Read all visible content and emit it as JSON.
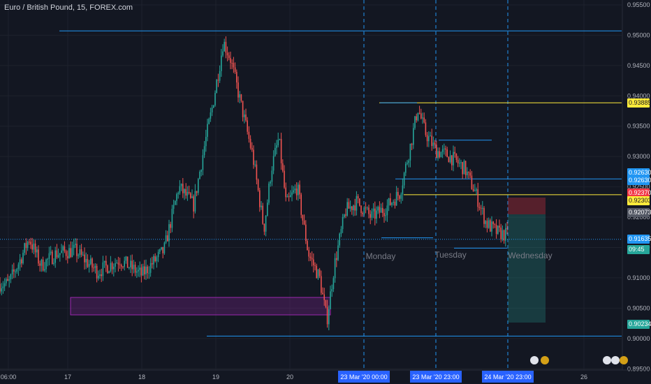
{
  "header": {
    "title": "Euro / British Pound, 15, FOREX.com"
  },
  "chart_data": {
    "type": "candlestick",
    "title": "Euro / British Pound, 15, FOREX.com",
    "ylim": [
      0.8948,
      0.9558
    ],
    "y_ticks": [
      "0.95500",
      "0.95000",
      "0.94500",
      "0.94000",
      "0.93500",
      "0.93000",
      "0.92500",
      "0.92000",
      "0.91500",
      "0.91000",
      "0.90500",
      "0.90000",
      "0.89500"
    ],
    "x_ticks": [
      {
        "label": "06:00",
        "t": 0.0
      },
      {
        "label": "17",
        "t": 1.0
      },
      {
        "label": "18",
        "t": 2.0
      },
      {
        "label": "19",
        "t": 3.0
      },
      {
        "label": "20",
        "t": 4.0
      },
      {
        "label": "26",
        "t": 8.0
      }
    ],
    "x_highlight_labels": [
      {
        "label": "23 Mar '20   00:00",
        "t": 5.0
      },
      {
        "label": "23 Mar '20   23:00",
        "t": 6.0
      },
      {
        "label": "24 Mar '20   23:00",
        "t": 7.0
      }
    ],
    "session_labels": [
      "Monday",
      "Tuesday",
      "Wednesday"
    ],
    "price_levels": [
      {
        "price": 0.9507,
        "color": "#2196f3"
      },
      {
        "price": 0.93885,
        "color": "#ffeb3b"
      },
      {
        "price": 0.9263,
        "color": "#2196f3"
      },
      {
        "price": 0.9237,
        "color": "#ffeb3b"
      },
      {
        "price": 0.9004,
        "color": "#2196f3"
      }
    ],
    "badges": [
      {
        "label": "0.93885",
        "price": 0.93885,
        "bg": "#ffeb3b",
        "fg": "#131722"
      },
      {
        "label": "0.92630",
        "price": 0.9273,
        "bg": "#2196f3",
        "fg": "#ffffff"
      },
      {
        "label": "0.92630",
        "price": 0.926,
        "bg": "#2196f3",
        "fg": "#ffffff"
      },
      {
        "label": "0.92370",
        "price": 0.924,
        "bg": "#f23645",
        "fg": "#ffffff"
      },
      {
        "label": "0.92303",
        "price": 0.9227,
        "bg": "#ffeb3b",
        "fg": "#131722"
      },
      {
        "label": "0.92073",
        "price": 0.92073,
        "bg": "#555a66",
        "fg": "#ffffff"
      },
      {
        "label": "0.91635",
        "price": 0.91635,
        "bg": "#2196f3",
        "fg": "#ffffff"
      },
      {
        "label": "09:45",
        "price": 0.9146,
        "bg": "#26a69a",
        "fg": "#ffffff"
      },
      {
        "label": "0.90234",
        "price": 0.90234,
        "bg": "#26a69a",
        "fg": "#ffffff"
      }
    ],
    "price_path": [
      [
        0.0,
        0.909
      ],
      [
        0.2,
        0.913
      ],
      [
        0.35,
        0.9165
      ],
      [
        0.55,
        0.912
      ],
      [
        0.8,
        0.914
      ],
      [
        1.1,
        0.9145
      ],
      [
        1.4,
        0.911
      ],
      [
        1.7,
        0.913
      ],
      [
        2.0,
        0.9105
      ],
      [
        2.3,
        0.9145
      ],
      [
        2.5,
        0.925
      ],
      [
        2.7,
        0.922
      ],
      [
        2.85,
        0.932
      ],
      [
        2.95,
        0.938
      ],
      [
        3.05,
        0.945
      ],
      [
        3.1,
        0.949
      ],
      [
        3.2,
        0.946
      ],
      [
        3.35,
        0.938
      ],
      [
        3.5,
        0.93
      ],
      [
        3.65,
        0.918
      ],
      [
        3.75,
        0.928
      ],
      [
        3.85,
        0.933
      ],
      [
        3.95,
        0.922
      ],
      [
        4.1,
        0.925
      ],
      [
        4.25,
        0.914
      ],
      [
        4.4,
        0.91
      ],
      [
        4.5,
        0.903
      ],
      [
        4.6,
        0.912
      ],
      [
        4.75,
        0.921
      ],
      [
        4.9,
        0.9225
      ],
      [
        5.1,
        0.92
      ],
      [
        5.3,
        0.9215
      ],
      [
        5.5,
        0.924
      ],
      [
        5.65,
        0.932
      ],
      [
        5.75,
        0.938
      ],
      [
        5.85,
        0.934
      ],
      [
        6.0,
        0.931
      ],
      [
        6.2,
        0.93
      ],
      [
        6.4,
        0.928
      ],
      [
        6.55,
        0.924
      ],
      [
        6.7,
        0.919
      ],
      [
        6.85,
        0.9175
      ],
      [
        7.0,
        0.917
      ]
    ],
    "colors": {
      "up": "#26a69a",
      "down": "#ef5350",
      "background": "#131722",
      "grid": "#1e222d"
    }
  }
}
